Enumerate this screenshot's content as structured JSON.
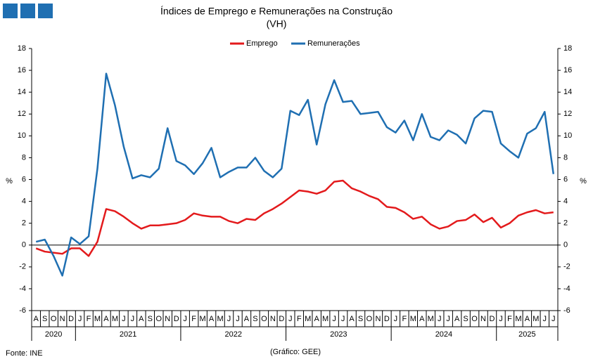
{
  "chart_data": {
    "type": "line",
    "title": "Índices de Emprego e Remunerações na Construção",
    "subtitle": "(VH)",
    "y_label": "%",
    "y2_label": "%",
    "source": "Fonte: INE",
    "credit": "(Gráfico: GEE)",
    "legend": "top",
    "categories": [
      "A",
      "S",
      "O",
      "N",
      "D",
      "J",
      "F",
      "M",
      "A",
      "M",
      "J",
      "J",
      "A",
      "S",
      "O",
      "N",
      "D",
      "J",
      "F",
      "M",
      "A",
      "M",
      "J",
      "J",
      "A",
      "S",
      "O",
      "N",
      "D",
      "J",
      "F",
      "M",
      "A",
      "M",
      "J",
      "J",
      "A",
      "S",
      "O",
      "N",
      "D",
      "J",
      "F",
      "M",
      "A",
      "M",
      "J",
      "J",
      "A",
      "S",
      "O",
      "N",
      "D",
      "J",
      "F",
      "M",
      "A",
      "M",
      "J",
      "J"
    ],
    "year_groups": [
      {
        "label": "2020",
        "months": 5
      },
      {
        "label": "2021",
        "months": 12
      },
      {
        "label": "2022",
        "months": 12
      },
      {
        "label": "2023",
        "months": 12
      },
      {
        "label": "2024",
        "months": 12
      },
      {
        "label": "2025",
        "months": 7
      }
    ],
    "series": [
      {
        "name": "Emprego",
        "color": "#e31a1c",
        "values": [
          -0.3,
          -0.6,
          -0.7,
          -0.8,
          -0.3,
          -0.3,
          -1.0,
          0.3,
          3.3,
          3.1,
          2.6,
          2.0,
          1.5,
          1.8,
          1.8,
          1.9,
          2.0,
          2.3,
          2.9,
          2.7,
          2.6,
          2.6,
          2.2,
          2.0,
          2.4,
          2.3,
          2.9,
          3.3,
          3.8,
          4.4,
          5.0,
          4.9,
          4.7,
          5.0,
          5.8,
          5.9,
          5.2,
          4.9,
          4.5,
          4.2,
          3.5,
          3.4,
          3.0,
          2.4,
          2.6,
          1.9,
          1.5,
          1.7,
          2.2,
          2.3,
          2.8,
          2.1,
          2.5,
          1.6,
          2.0,
          2.7,
          3.0,
          3.2,
          2.9,
          3.0
        ]
      },
      {
        "name": "Remunerações",
        "color": "#1f6fb2",
        "values": [
          0.3,
          0.5,
          -1.0,
          -2.8,
          0.7,
          0.1,
          0.8,
          7.0,
          15.7,
          12.8,
          9.0,
          6.1,
          6.4,
          6.2,
          7.0,
          10.7,
          7.7,
          7.3,
          6.5,
          7.5,
          8.9,
          6.2,
          6.7,
          7.1,
          7.1,
          8.0,
          6.8,
          6.2,
          7.0,
          12.3,
          11.9,
          13.3,
          9.2,
          12.9,
          15.1,
          13.1,
          13.2,
          12.0,
          12.1,
          12.2,
          10.8,
          10.3,
          11.4,
          9.6,
          12.0,
          9.9,
          9.6,
          10.5,
          10.1,
          9.3,
          11.6,
          12.3,
          12.2,
          9.3,
          8.6,
          8.0,
          10.2,
          10.7,
          12.2,
          6.5
        ]
      }
    ],
    "ylim": [
      -6,
      18
    ],
    "yticks": [
      -6,
      -4,
      -2,
      0,
      2,
      4,
      6,
      8,
      10,
      12,
      14,
      16,
      18
    ],
    "y2lim": [
      -6,
      18
    ],
    "y2ticks": [
      -6,
      -4,
      -2,
      0,
      2,
      4,
      6,
      8,
      10,
      12,
      14,
      16,
      18
    ],
    "grid": false
  }
}
